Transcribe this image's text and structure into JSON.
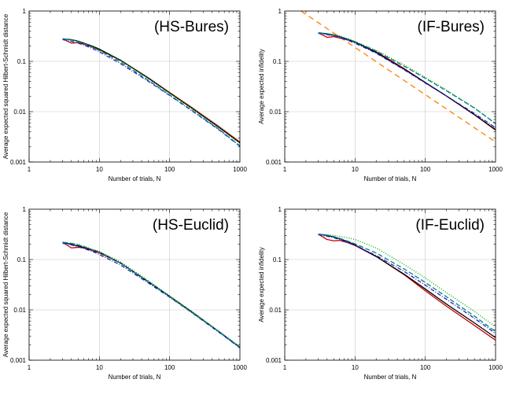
{
  "chart_data": [
    {
      "type": "line",
      "title": "(HS-Bures)",
      "xlabel": "Number of trials, N",
      "ylabel": "Average expected squared Hilbert-Schmidt distance",
      "xscale": "log",
      "yscale": "log",
      "xlim": [
        1,
        1000
      ],
      "ylim": [
        0.001,
        1
      ],
      "xticks": [
        "1",
        "10",
        "100",
        "1000"
      ],
      "yticks": [
        "0.001",
        "0.01",
        "0.1",
        "1"
      ],
      "grid": true,
      "series": [
        {
          "color": "#cc0000",
          "dash": "",
          "x": [
            3,
            4,
            5,
            6,
            8,
            10,
            20,
            50,
            100,
            200,
            500,
            1000
          ],
          "y": [
            0.28,
            0.23,
            0.235,
            0.22,
            0.19,
            0.17,
            0.105,
            0.047,
            0.024,
            0.0125,
            0.0051,
            0.0025
          ]
        },
        {
          "color": "#000000",
          "dash": "",
          "x": [
            3,
            4,
            5,
            6,
            8,
            10,
            20,
            50,
            100,
            200,
            500,
            1000
          ],
          "y": [
            0.28,
            0.27,
            0.25,
            0.23,
            0.2,
            0.175,
            0.105,
            0.046,
            0.0235,
            0.0121,
            0.0049,
            0.0024
          ]
        },
        {
          "color": "#00a000",
          "dash": "1,2",
          "x": [
            3,
            4,
            5,
            6,
            8,
            10,
            20,
            50,
            100,
            200,
            500,
            1000
          ],
          "y": [
            0.28,
            0.27,
            0.255,
            0.235,
            0.2,
            0.178,
            0.107,
            0.047,
            0.024,
            0.0122,
            0.005,
            0.0024
          ]
        },
        {
          "color": "#2020d0",
          "dash": "5,2,1,2",
          "x": [
            3,
            4,
            5,
            6,
            8,
            10,
            20,
            50,
            100,
            200,
            500,
            1000
          ],
          "y": [
            0.27,
            0.25,
            0.23,
            0.21,
            0.18,
            0.155,
            0.09,
            0.04,
            0.021,
            0.0108,
            0.0044,
            0.00205
          ]
        },
        {
          "color": "#008080",
          "dash": "6,3",
          "x": [
            3,
            4,
            5,
            6,
            8,
            10,
            20,
            50,
            100,
            200,
            500,
            1000
          ],
          "y": [
            0.28,
            0.265,
            0.245,
            0.225,
            0.19,
            0.165,
            0.097,
            0.042,
            0.0215,
            0.0111,
            0.0045,
            0.0021
          ]
        }
      ]
    },
    {
      "type": "line",
      "title": "(IF-Bures)",
      "xlabel": "Number of trials, N",
      "ylabel": "Average expected infidelity",
      "xscale": "log",
      "yscale": "log",
      "xlim": [
        1,
        1000
      ],
      "ylim": [
        0.001,
        1
      ],
      "xticks": [
        "1",
        "10",
        "100",
        "1000"
      ],
      "yticks": [
        "0.001",
        "0.01",
        "0.1",
        "1"
      ],
      "grid": true,
      "series": [
        {
          "color": "#ff7f00",
          "dash": "7,5",
          "x": [
            1.7,
            1000
          ],
          "y": [
            1.0,
            0.0025
          ]
        },
        {
          "color": "#cc0000",
          "dash": "",
          "x": [
            3,
            4,
            5,
            6,
            8,
            10,
            20,
            50,
            100,
            200,
            500,
            1000
          ],
          "y": [
            0.37,
            0.3,
            0.31,
            0.29,
            0.265,
            0.24,
            0.155,
            0.072,
            0.038,
            0.0205,
            0.0087,
            0.0043
          ]
        },
        {
          "color": "#000000",
          "dash": "",
          "x": [
            3,
            4,
            5,
            6,
            8,
            10,
            20,
            50,
            100,
            200,
            500,
            1000
          ],
          "y": [
            0.37,
            0.35,
            0.33,
            0.31,
            0.27,
            0.24,
            0.15,
            0.07,
            0.038,
            0.0205,
            0.0087,
            0.0044
          ]
        },
        {
          "color": "#00a000",
          "dash": "1,2",
          "x": [
            3,
            4,
            5,
            6,
            8,
            10,
            20,
            50,
            100,
            200,
            500,
            1000
          ],
          "y": [
            0.37,
            0.355,
            0.34,
            0.32,
            0.28,
            0.25,
            0.165,
            0.085,
            0.048,
            0.027,
            0.012,
            0.0058
          ]
        },
        {
          "color": "#2020d0",
          "dash": "5,2,1,2",
          "x": [
            3,
            4,
            5,
            6,
            8,
            10,
            20,
            50,
            100,
            200,
            500,
            1000
          ],
          "y": [
            0.36,
            0.34,
            0.32,
            0.3,
            0.26,
            0.23,
            0.145,
            0.068,
            0.037,
            0.0205,
            0.0092,
            0.0048
          ]
        },
        {
          "color": "#008080",
          "dash": "6,3",
          "x": [
            3,
            4,
            5,
            6,
            8,
            10,
            20,
            50,
            100,
            200,
            500,
            1000
          ],
          "y": [
            0.37,
            0.355,
            0.335,
            0.315,
            0.275,
            0.245,
            0.16,
            0.08,
            0.046,
            0.026,
            0.0118,
            0.0058
          ]
        }
      ]
    },
    {
      "type": "line",
      "title": "(HS-Euclid)",
      "xlabel": "Number of trials, N",
      "ylabel": "Average expected squared Hilbert-Schmidt distance",
      "xscale": "log",
      "yscale": "log",
      "xlim": [
        1,
        1000
      ],
      "ylim": [
        0.001,
        1
      ],
      "xticks": [
        "1",
        "10",
        "100",
        "1000"
      ],
      "yticks": [
        "0.001",
        "0.01",
        "0.1",
        "1"
      ],
      "grid": true,
      "series": [
        {
          "color": "#cc0000",
          "dash": "",
          "x": [
            3,
            4,
            5,
            6,
            8,
            10,
            20,
            50,
            100,
            200,
            500,
            1000
          ],
          "y": [
            0.22,
            0.17,
            0.175,
            0.17,
            0.15,
            0.135,
            0.085,
            0.036,
            0.0185,
            0.0094,
            0.0037,
            0.0018
          ]
        },
        {
          "color": "#000000",
          "dash": "",
          "x": [
            3,
            4,
            5,
            6,
            8,
            10,
            20,
            50,
            100,
            200,
            500,
            1000
          ],
          "y": [
            0.22,
            0.2,
            0.185,
            0.175,
            0.155,
            0.14,
            0.085,
            0.036,
            0.0185,
            0.0094,
            0.0037,
            0.0018
          ]
        },
        {
          "color": "#00a000",
          "dash": "1,2",
          "x": [
            3,
            4,
            5,
            6,
            8,
            10,
            20,
            50,
            100,
            200,
            500,
            1000
          ],
          "y": [
            0.22,
            0.21,
            0.2,
            0.185,
            0.16,
            0.145,
            0.09,
            0.038,
            0.019,
            0.0096,
            0.0038,
            0.00185
          ]
        },
        {
          "color": "#2020d0",
          "dash": "5,2,1,2",
          "x": [
            3,
            4,
            5,
            6,
            8,
            10,
            20,
            50,
            100,
            200,
            500,
            1000
          ],
          "y": [
            0.21,
            0.195,
            0.18,
            0.165,
            0.145,
            0.125,
            0.078,
            0.034,
            0.0178,
            0.0091,
            0.0036,
            0.00175
          ]
        },
        {
          "color": "#008080",
          "dash": "6,3",
          "x": [
            3,
            4,
            5,
            6,
            8,
            10,
            20,
            50,
            100,
            200,
            500,
            1000
          ],
          "y": [
            0.22,
            0.21,
            0.195,
            0.18,
            0.155,
            0.14,
            0.085,
            0.036,
            0.0182,
            0.0092,
            0.0037,
            0.0018
          ]
        }
      ]
    },
    {
      "type": "line",
      "title": "(IF-Euclid)",
      "xlabel": "Number of trials, N",
      "ylabel": "Average expected infidelity",
      "xscale": "log",
      "yscale": "log",
      "xlim": [
        1,
        1000
      ],
      "ylim": [
        0.001,
        1
      ],
      "xticks": [
        "1",
        "10",
        "100",
        "1000"
      ],
      "yticks": [
        "0.001",
        "0.01",
        "0.1",
        "1"
      ],
      "grid": true,
      "series": [
        {
          "color": "#cc0000",
          "dash": "",
          "x": [
            3,
            4,
            5,
            6,
            8,
            10,
            20,
            50,
            100,
            200,
            500,
            1000
          ],
          "y": [
            0.32,
            0.25,
            0.235,
            0.24,
            0.215,
            0.19,
            0.115,
            0.05,
            0.024,
            0.0118,
            0.0049,
            0.0025
          ]
        },
        {
          "color": "#000000",
          "dash": "",
          "x": [
            3,
            4,
            5,
            6,
            8,
            10,
            20,
            50,
            100,
            200,
            500,
            1000
          ],
          "y": [
            0.32,
            0.3,
            0.28,
            0.26,
            0.225,
            0.195,
            0.115,
            0.051,
            0.026,
            0.013,
            0.0055,
            0.0028
          ]
        },
        {
          "color": "#00a000",
          "dash": "1,2",
          "x": [
            3,
            4,
            5,
            6,
            8,
            10,
            20,
            50,
            100,
            200,
            500,
            1000
          ],
          "y": [
            0.32,
            0.31,
            0.3,
            0.29,
            0.27,
            0.25,
            0.17,
            0.08,
            0.043,
            0.022,
            0.0093,
            0.0046
          ]
        },
        {
          "color": "#2020d0",
          "dash": "5,2,1,2",
          "x": [
            3,
            4,
            5,
            6,
            8,
            10,
            20,
            50,
            100,
            200,
            500,
            1000
          ],
          "y": [
            0.31,
            0.29,
            0.27,
            0.25,
            0.215,
            0.19,
            0.12,
            0.058,
            0.031,
            0.0162,
            0.0068,
            0.0034
          ]
        },
        {
          "color": "#008080",
          "dash": "6,3",
          "x": [
            3,
            4,
            5,
            6,
            8,
            10,
            20,
            50,
            100,
            200,
            500,
            1000
          ],
          "y": [
            0.32,
            0.305,
            0.285,
            0.265,
            0.23,
            0.205,
            0.135,
            0.065,
            0.035,
            0.0182,
            0.0075,
            0.0037
          ]
        }
      ]
    }
  ]
}
